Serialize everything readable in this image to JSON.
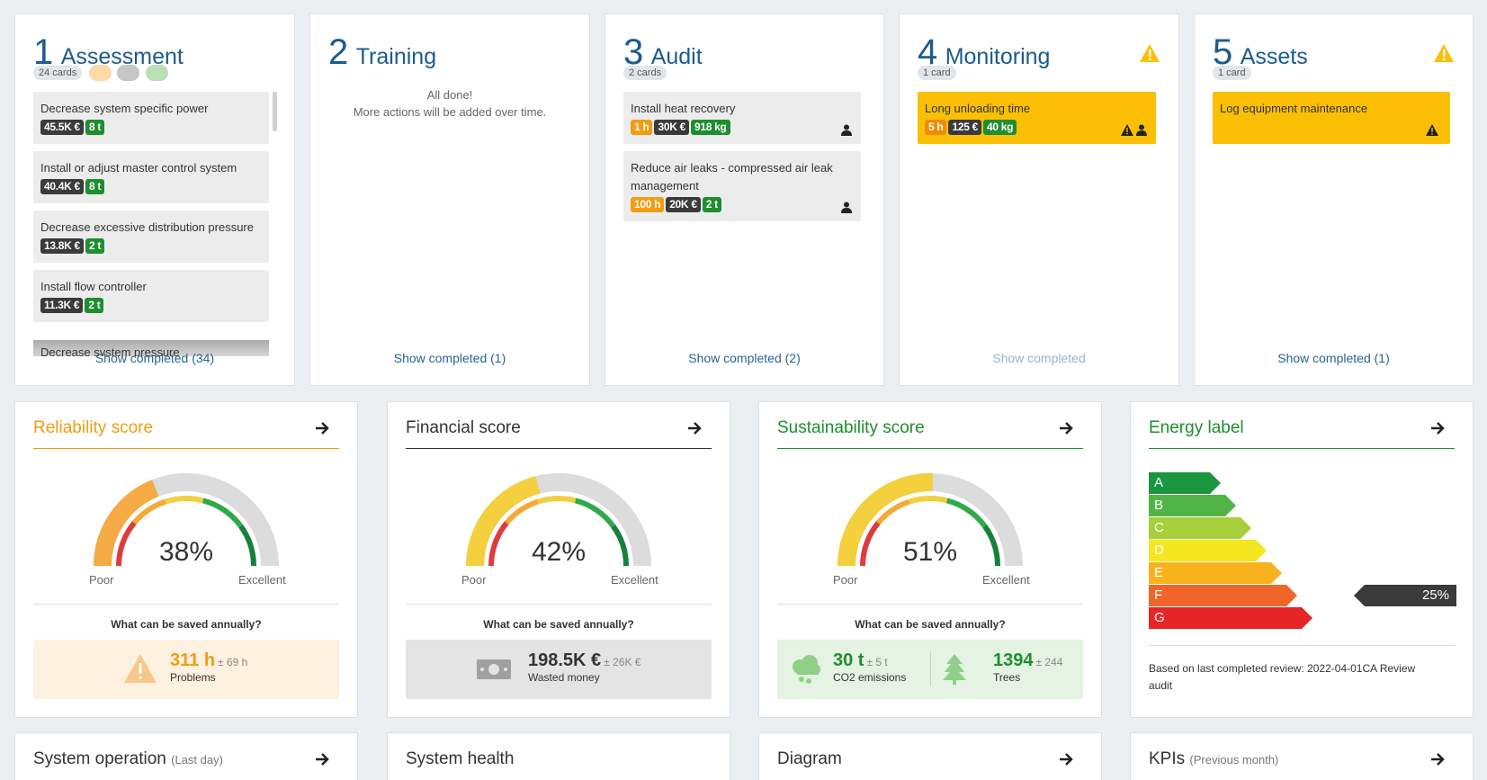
{
  "columns": [
    {
      "num": "1",
      "title": "Assessment",
      "count": "24 cards",
      "dots": [
        "#fdd9a8",
        "#c6c6c6",
        "#b9dfb4"
      ],
      "cards": [
        {
          "title": "Decrease system specific power",
          "tags": [
            {
              "t": "45.5K €",
              "c": "dark"
            },
            {
              "t": "8 t",
              "c": "green"
            }
          ]
        },
        {
          "title": "Install or adjust master control system",
          "tags": [
            {
              "t": "40.4K €",
              "c": "dark"
            },
            {
              "t": "8 t",
              "c": "green"
            }
          ]
        },
        {
          "title": "Decrease excessive distribution pressure",
          "tags": [
            {
              "t": "13.8K €",
              "c": "dark"
            },
            {
              "t": "2 t",
              "c": "green"
            }
          ]
        },
        {
          "title": "Install flow controller",
          "tags": [
            {
              "t": "11.3K €",
              "c": "dark"
            },
            {
              "t": "2 t",
              "c": "green"
            }
          ]
        }
      ],
      "partial_card": "Decrease system pressure",
      "show_completed": "Show completed (34)"
    },
    {
      "num": "2",
      "title": "Training",
      "done_line1": "All done!",
      "done_line2": "More actions will be added over time.",
      "show_completed": "Show completed (1)"
    },
    {
      "num": "3",
      "title": "Audit",
      "count": "2 cards",
      "cards": [
        {
          "title": "Install heat recovery",
          "tags": [
            {
              "t": "1 h",
              "c": "orange"
            },
            {
              "t": "30K €",
              "c": "dark"
            },
            {
              "t": "918 kg",
              "c": "green"
            }
          ]
        },
        {
          "title": "Reduce air leaks - compressed air leak management",
          "tags": [
            {
              "t": "100 h",
              "c": "orange"
            },
            {
              "t": "20K €",
              "c": "dark"
            },
            {
              "t": "2 t",
              "c": "green"
            }
          ]
        }
      ],
      "show_completed": "Show completed (2)"
    },
    {
      "num": "4",
      "title": "Monitoring",
      "count": "1 card",
      "cards": [
        {
          "title": "Long unloading time",
          "tags": [
            {
              "t": "5 h",
              "c": "orange"
            },
            {
              "t": "125 €",
              "c": "dark"
            },
            {
              "t": "40 kg",
              "c": "green"
            }
          ]
        }
      ],
      "show_completed": "Show completed"
    },
    {
      "num": "5",
      "title": "Assets",
      "count": "1 card",
      "cards": [
        {
          "title": "Log equipment maintenance"
        }
      ],
      "show_completed": "Show completed (1)"
    }
  ],
  "scores": {
    "reliability": {
      "title": "Reliability score",
      "value": "38%",
      "fraction": 0.38,
      "poor": "Poor",
      "excellent": "Excellent",
      "question": "What can be saved annually?",
      "amount": "311 h",
      "pm": "± 69 h",
      "label": "Problems",
      "color": "#f39c12"
    },
    "financial": {
      "title": "Financial score",
      "value": "42%",
      "fraction": 0.42,
      "poor": "Poor",
      "excellent": "Excellent",
      "question": "What can be saved annually?",
      "amount": "198.5K €",
      "pm": "± 26K €",
      "label": "Wasted money"
    },
    "sustainability": {
      "title": "Sustainability score",
      "value": "51%",
      "fraction": 0.51,
      "poor": "Poor",
      "excellent": "Excellent",
      "question": "What can be saved annually?",
      "amount1": "30 t",
      "pm1": "± 5 t",
      "label1": "CO2 emissions",
      "amount2": "1394",
      "pm2": "± 244",
      "label2": "Trees",
      "color": "#1e8e2e"
    },
    "energy": {
      "title": "Energy label",
      "classes": [
        "A",
        "B",
        "C",
        "D",
        "E",
        "F",
        "G"
      ],
      "class_colors": [
        "#1a9641",
        "#52b447",
        "#a6cf3a",
        "#f4e61e",
        "#f7b21d",
        "#f0662a",
        "#e52528"
      ],
      "current_class": "F",
      "current_value": "25%",
      "footnote": "Based on last completed review: 2022-04-01CA Review audit"
    }
  },
  "bottom": {
    "system_operation": {
      "title": "System operation",
      "sub": "(Last day)"
    },
    "system_health": {
      "title": "System health"
    },
    "diagram": {
      "title": "Diagram"
    },
    "kpis": {
      "title": "KPIs",
      "sub": "(Previous month)"
    }
  }
}
